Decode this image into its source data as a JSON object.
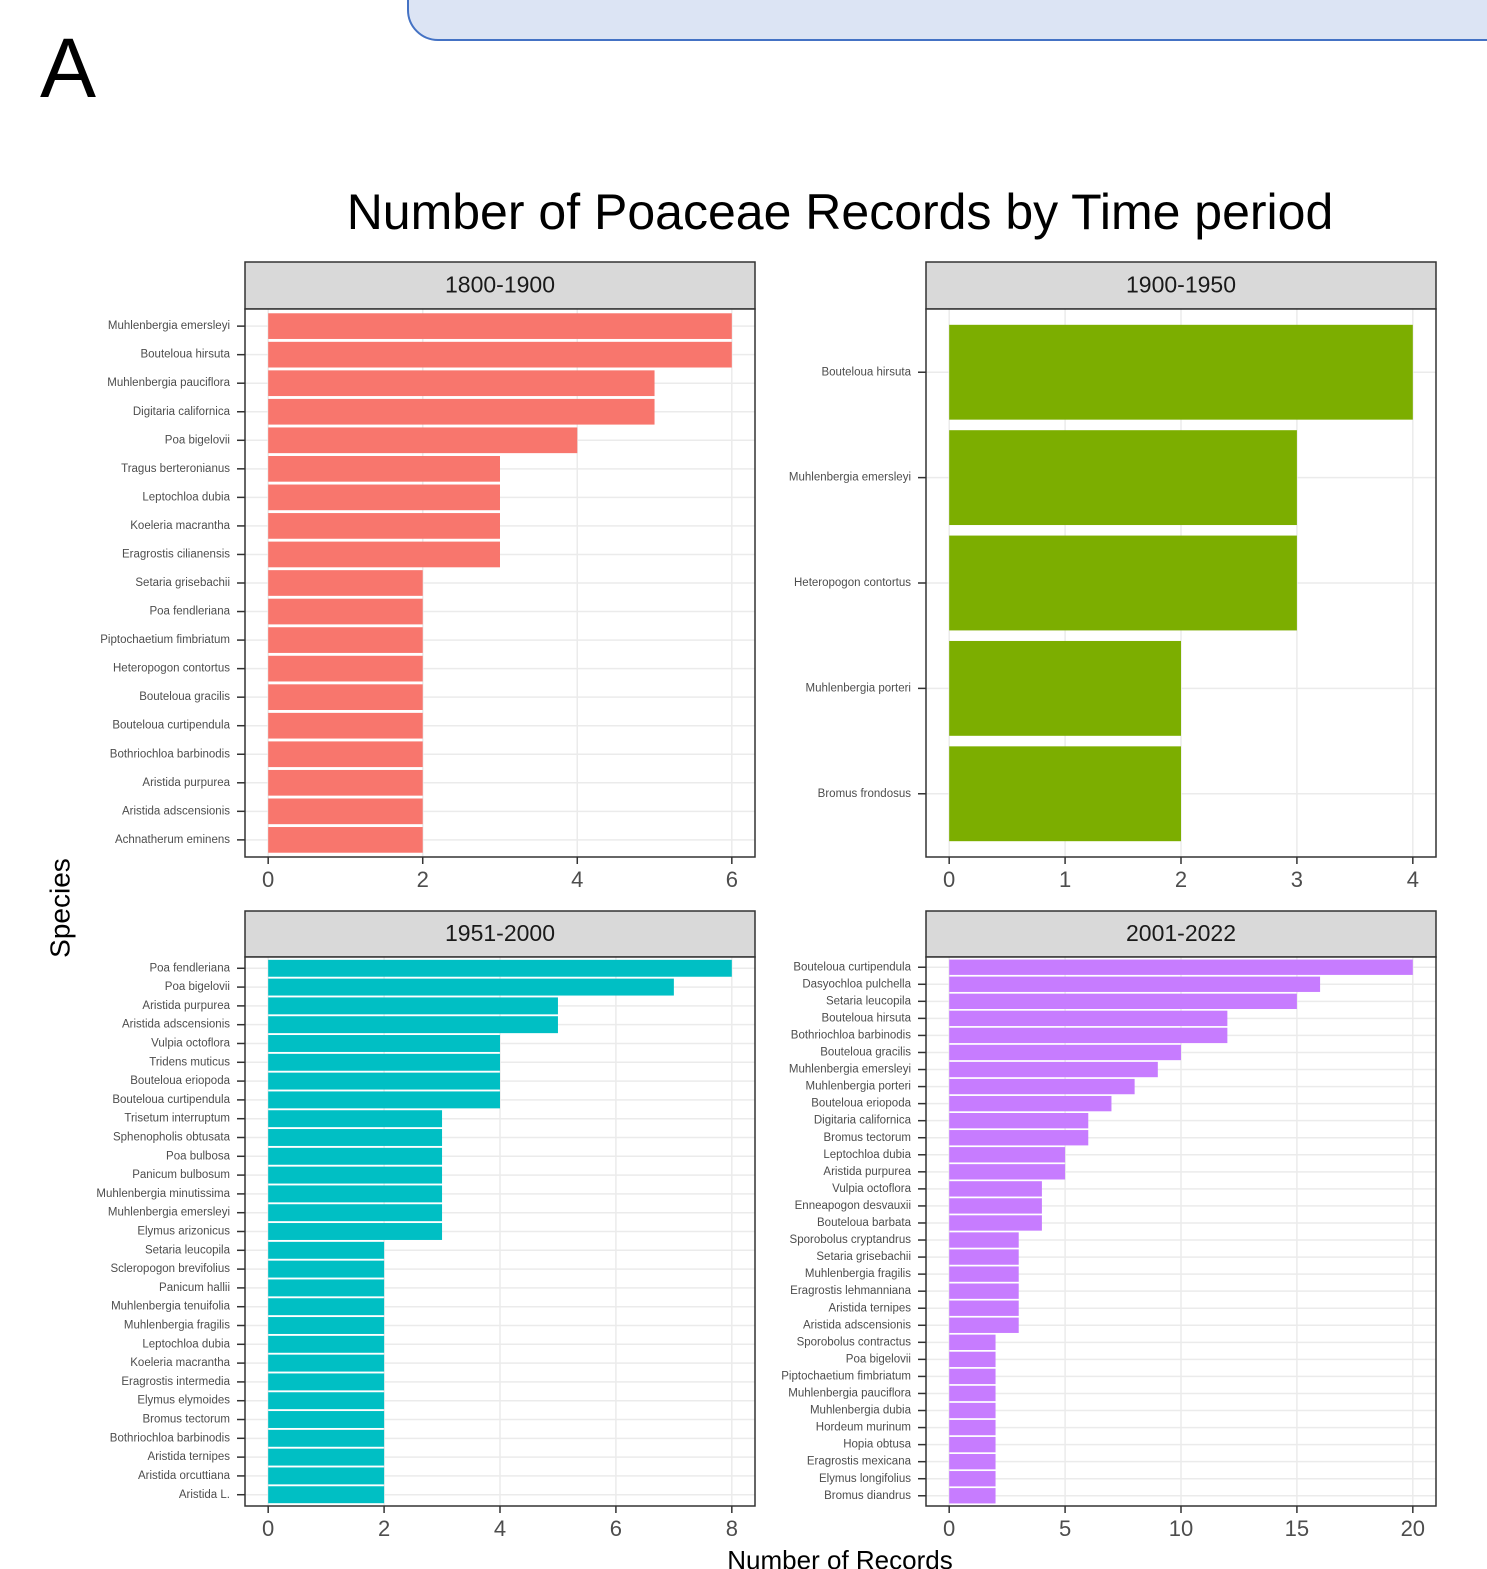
{
  "panel_label": "A",
  "title": "Number of Poaceae Records by Time period",
  "y_label": "Species",
  "x_label": "Number of Records",
  "chart_data": [
    {
      "type": "bar",
      "title": "1800-1900",
      "color": "#f8766d",
      "xlim": [
        -0.3,
        6.3
      ],
      "xticks": [
        0,
        2,
        4,
        6
      ],
      "grid": true,
      "categories": [
        "Muhlenbergia emersleyi",
        "Bouteloua hirsuta",
        "Muhlenbergia pauciflora",
        "Digitaria californica",
        "Poa bigelovii",
        "Tragus berteronianus",
        "Leptochloa dubia",
        "Koeleria macrantha",
        "Eragrostis cilianensis",
        "Setaria grisebachii",
        "Poa fendleriana",
        "Piptochaetium fimbriatum",
        "Heteropogon contortus",
        "Bouteloua gracilis",
        "Bouteloua curtipendula",
        "Bothriochloa barbinodis",
        "Aristida purpurea",
        "Aristida adscensionis",
        "Achnatherum eminens"
      ],
      "values": [
        6,
        6,
        5,
        5,
        4,
        3,
        3,
        3,
        3,
        2,
        2,
        2,
        2,
        2,
        2,
        2,
        2,
        2,
        2
      ]
    },
    {
      "type": "bar",
      "title": "1900-1950",
      "color": "#7cae00",
      "xlim": [
        -0.2,
        4.2
      ],
      "xticks": [
        0,
        1,
        2,
        3,
        4
      ],
      "grid": true,
      "categories": [
        "Bouteloua hirsuta",
        "Muhlenbergia emersleyi",
        "Heteropogon contortus",
        "Muhlenbergia porteri",
        "Bromus frondosus"
      ],
      "values": [
        4,
        3,
        3,
        2,
        2
      ]
    },
    {
      "type": "bar",
      "title": "1951-2000",
      "color": "#00bfc4",
      "xlim": [
        -0.4,
        8.4
      ],
      "xticks": [
        0,
        2,
        4,
        6,
        8
      ],
      "grid": true,
      "categories": [
        "Poa fendleriana",
        "Poa bigelovii",
        "Aristida purpurea",
        "Aristida adscensionis",
        "Vulpia octoflora",
        "Tridens muticus",
        "Bouteloua eriopoda",
        "Bouteloua curtipendula",
        "Trisetum interruptum",
        "Sphenopholis obtusata",
        "Poa bulbosa",
        "Panicum bulbosum",
        "Muhlenbergia minutissima",
        "Muhlenbergia emersleyi",
        "Elymus arizonicus",
        "Setaria leucopila",
        "Scleropogon brevifolius",
        "Panicum hallii",
        "Muhlenbergia tenuifolia",
        "Muhlenbergia fragilis",
        "Leptochloa dubia",
        "Koeleria macrantha",
        "Eragrostis intermedia",
        "Elymus elymoides",
        "Bromus tectorum",
        "Bothriochloa barbinodis",
        "Aristida ternipes",
        "Aristida orcuttiana",
        "Aristida L."
      ],
      "values": [
        8,
        7,
        5,
        5,
        4,
        4,
        4,
        4,
        3,
        3,
        3,
        3,
        3,
        3,
        3,
        2,
        2,
        2,
        2,
        2,
        2,
        2,
        2,
        2,
        2,
        2,
        2,
        2,
        2
      ]
    },
    {
      "type": "bar",
      "title": "2001-2022",
      "color": "#c77cff",
      "xlim": [
        -1,
        21
      ],
      "xticks": [
        0,
        5,
        10,
        15,
        20
      ],
      "grid": true,
      "categories": [
        "Bouteloua curtipendula",
        "Dasyochloa pulchella",
        "Setaria leucopila",
        "Bouteloua hirsuta",
        "Bothriochloa barbinodis",
        "Bouteloua gracilis",
        "Muhlenbergia emersleyi",
        "Muhlenbergia porteri",
        "Bouteloua eriopoda",
        "Digitaria californica",
        "Bromus tectorum",
        "Leptochloa dubia",
        "Aristida purpurea",
        "Vulpia octoflora",
        "Enneapogon desvauxii",
        "Bouteloua barbata",
        "Sporobolus cryptandrus",
        "Setaria grisebachii",
        "Muhlenbergia fragilis",
        "Eragrostis lehmanniana",
        "Aristida ternipes",
        "Aristida adscensionis",
        "Sporobolus contractus",
        "Poa bigelovii",
        "Piptochaetium fimbriatum",
        "Muhlenbergia pauciflora",
        "Muhlenbergia dubia",
        "Hordeum murinum",
        "Hopia obtusa",
        "Eragrostis mexicana",
        "Elymus longifolius",
        "Bromus diandrus"
      ],
      "values": [
        20,
        16,
        15,
        12,
        12,
        10,
        9,
        8,
        7,
        6,
        6,
        5,
        5,
        4,
        4,
        4,
        3,
        3,
        3,
        3,
        3,
        3,
        2,
        2,
        2,
        2,
        2,
        2,
        2,
        2,
        2,
        2
      ]
    }
  ]
}
